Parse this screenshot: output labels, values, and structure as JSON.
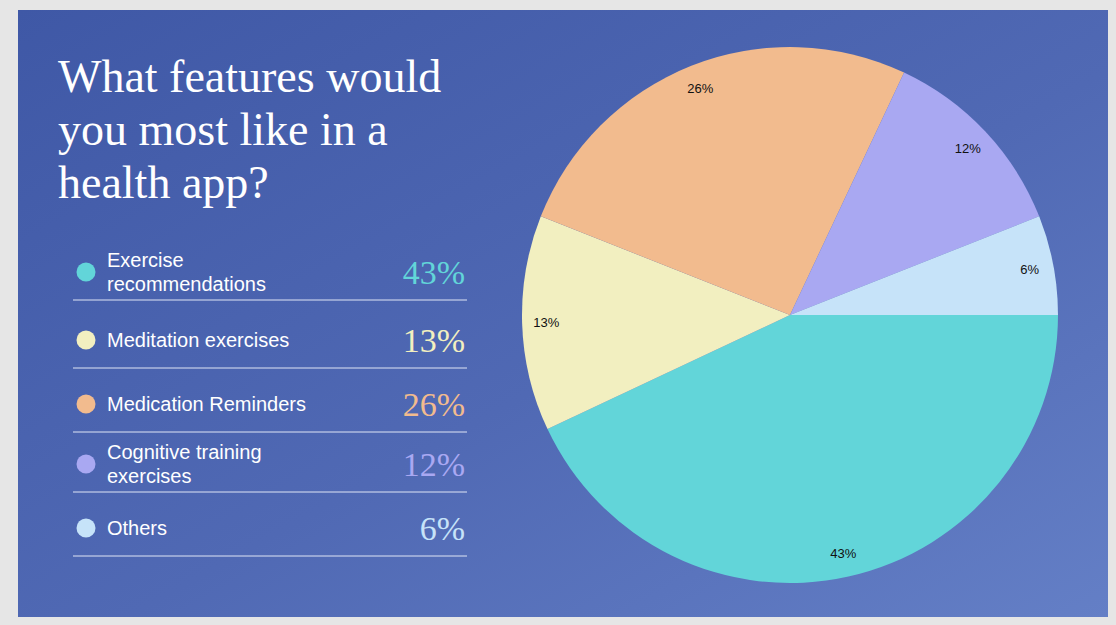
{
  "chart_data": {
    "type": "pie",
    "title": "What features would you most like in a health app?",
    "categories": [
      "Exercise recommendations",
      "Meditation exercises",
      "Medication Reminders",
      "Cognitive training exercises",
      "Others"
    ],
    "values": [
      43,
      13,
      26,
      12,
      6
    ],
    "value_labels": [
      "43%",
      "13%",
      "26%",
      "12%",
      "6%"
    ],
    "colors": [
      "#62d5d9",
      "#f2efc0",
      "#f2bb8e",
      "#a9a8f2",
      "#c6e3f9"
    ],
    "legend": "left",
    "data_labels": true
  }
}
